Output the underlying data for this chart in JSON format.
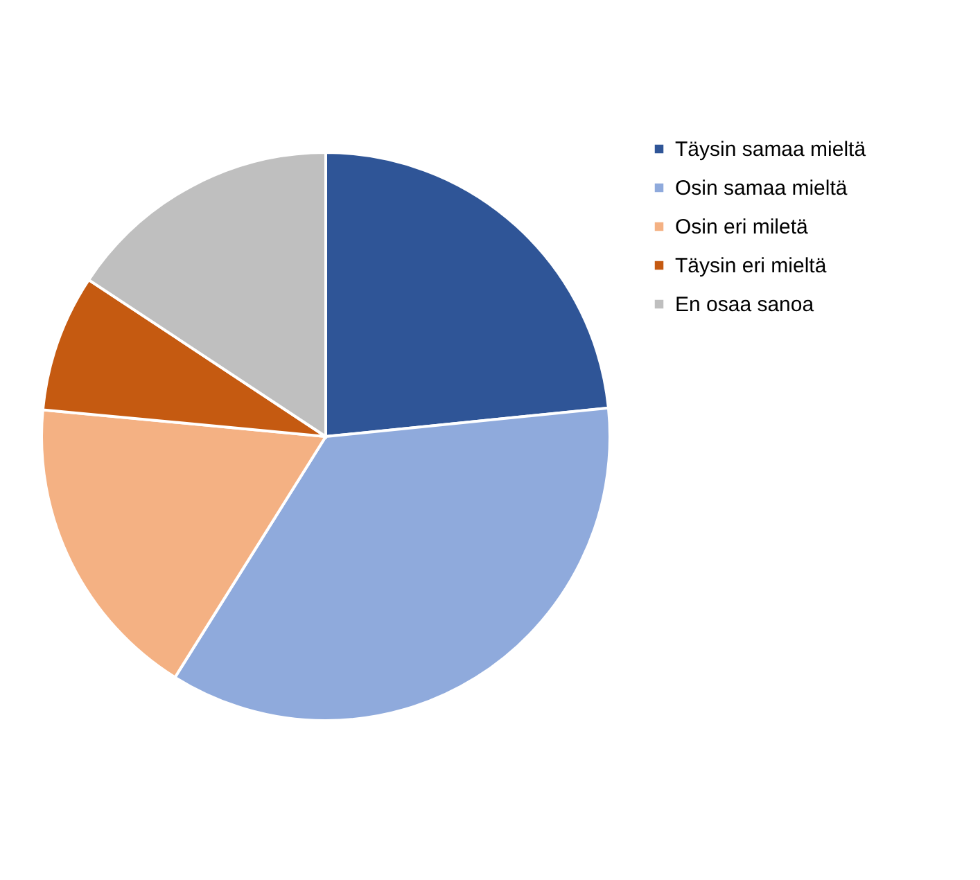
{
  "chart_data": {
    "type": "pie",
    "categories": [
      "Täysin samaa mieltä",
      "Osin samaa mieltä",
      "Osin eri miletä",
      "Täysin eri mieltä",
      "En osaa sanoa"
    ],
    "values": [
      23.4,
      35.5,
      17.6,
      7.8,
      15.7
    ],
    "colors": [
      "#2f5597",
      "#8faadc",
      "#f4b183",
      "#c55a11",
      "#bfbfbf"
    ],
    "legend": "right"
  }
}
